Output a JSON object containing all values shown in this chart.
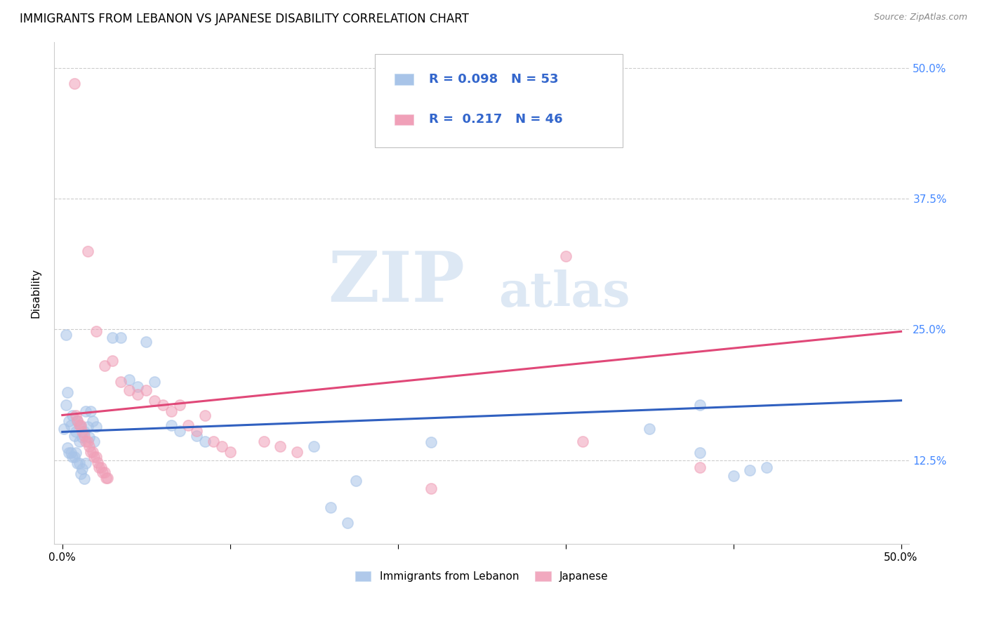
{
  "title": "IMMIGRANTS FROM LEBANON VS JAPANESE DISABILITY CORRELATION CHART",
  "source": "Source: ZipAtlas.com",
  "ylabel_label": "Disability",
  "legend_entries": [
    {
      "label": "Immigrants from Lebanon",
      "color": "#a8c4e8",
      "R": "0.098",
      "N": "53"
    },
    {
      "label": "Japanese",
      "color": "#f0a0b8",
      "R": "0.217",
      "N": "46"
    }
  ],
  "watermark_zip": "ZIP",
  "watermark_atlas": "atlas",
  "blue_scatter": [
    [
      0.001,
      0.155
    ],
    [
      0.002,
      0.178
    ],
    [
      0.003,
      0.19
    ],
    [
      0.004,
      0.162
    ],
    [
      0.005,
      0.158
    ],
    [
      0.006,
      0.168
    ],
    [
      0.007,
      0.148
    ],
    [
      0.008,
      0.152
    ],
    [
      0.009,
      0.162
    ],
    [
      0.01,
      0.143
    ],
    [
      0.011,
      0.157
    ],
    [
      0.012,
      0.147
    ],
    [
      0.013,
      0.152
    ],
    [
      0.014,
      0.172
    ],
    [
      0.015,
      0.157
    ],
    [
      0.016,
      0.147
    ],
    [
      0.017,
      0.172
    ],
    [
      0.018,
      0.162
    ],
    [
      0.019,
      0.143
    ],
    [
      0.02,
      0.157
    ],
    [
      0.003,
      0.137
    ],
    [
      0.004,
      0.132
    ],
    [
      0.005,
      0.132
    ],
    [
      0.006,
      0.128
    ],
    [
      0.007,
      0.128
    ],
    [
      0.008,
      0.132
    ],
    [
      0.009,
      0.122
    ],
    [
      0.01,
      0.122
    ],
    [
      0.011,
      0.112
    ],
    [
      0.012,
      0.117
    ],
    [
      0.013,
      0.107
    ],
    [
      0.014,
      0.122
    ],
    [
      0.002,
      0.245
    ],
    [
      0.05,
      0.238
    ],
    [
      0.035,
      0.242
    ],
    [
      0.03,
      0.242
    ],
    [
      0.04,
      0.202
    ],
    [
      0.045,
      0.195
    ],
    [
      0.055,
      0.2
    ],
    [
      0.065,
      0.158
    ],
    [
      0.07,
      0.153
    ],
    [
      0.08,
      0.148
    ],
    [
      0.085,
      0.143
    ],
    [
      0.15,
      0.138
    ],
    [
      0.35,
      0.155
    ],
    [
      0.38,
      0.178
    ],
    [
      0.38,
      0.132
    ],
    [
      0.4,
      0.11
    ],
    [
      0.42,
      0.118
    ],
    [
      0.22,
      0.142
    ],
    [
      0.16,
      0.08
    ],
    [
      0.17,
      0.065
    ],
    [
      0.175,
      0.105
    ],
    [
      0.41,
      0.115
    ]
  ],
  "pink_scatter": [
    [
      0.007,
      0.485
    ],
    [
      0.015,
      0.325
    ],
    [
      0.02,
      0.248
    ],
    [
      0.025,
      0.215
    ],
    [
      0.03,
      0.22
    ],
    [
      0.035,
      0.2
    ],
    [
      0.04,
      0.192
    ],
    [
      0.045,
      0.188
    ],
    [
      0.05,
      0.192
    ],
    [
      0.055,
      0.182
    ],
    [
      0.06,
      0.178
    ],
    [
      0.065,
      0.172
    ],
    [
      0.008,
      0.168
    ],
    [
      0.009,
      0.163
    ],
    [
      0.01,
      0.158
    ],
    [
      0.011,
      0.158
    ],
    [
      0.012,
      0.152
    ],
    [
      0.013,
      0.148
    ],
    [
      0.014,
      0.143
    ],
    [
      0.015,
      0.143
    ],
    [
      0.016,
      0.138
    ],
    [
      0.017,
      0.133
    ],
    [
      0.018,
      0.133
    ],
    [
      0.019,
      0.128
    ],
    [
      0.02,
      0.128
    ],
    [
      0.021,
      0.123
    ],
    [
      0.022,
      0.118
    ],
    [
      0.023,
      0.118
    ],
    [
      0.024,
      0.113
    ],
    [
      0.025,
      0.113
    ],
    [
      0.026,
      0.108
    ],
    [
      0.027,
      0.108
    ],
    [
      0.07,
      0.178
    ],
    [
      0.075,
      0.158
    ],
    [
      0.08,
      0.153
    ],
    [
      0.085,
      0.168
    ],
    [
      0.09,
      0.143
    ],
    [
      0.095,
      0.138
    ],
    [
      0.1,
      0.133
    ],
    [
      0.12,
      0.143
    ],
    [
      0.13,
      0.138
    ],
    [
      0.14,
      0.133
    ],
    [
      0.3,
      0.32
    ],
    [
      0.31,
      0.143
    ],
    [
      0.22,
      0.098
    ],
    [
      0.38,
      0.118
    ]
  ],
  "blue_line": {
    "x": [
      0.0,
      0.5
    ],
    "y": [
      0.152,
      0.182
    ]
  },
  "pink_line": {
    "x": [
      0.0,
      0.5
    ],
    "y": [
      0.168,
      0.248
    ]
  },
  "xlim": [
    -0.005,
    0.505
  ],
  "ylim": [
    0.045,
    0.525
  ],
  "yticks": [
    0.125,
    0.25,
    0.375,
    0.5
  ],
  "xticks": [
    0.0,
    0.1,
    0.2,
    0.3,
    0.4,
    0.5
  ],
  "xtick_labels": [
    "0.0%",
    "",
    "",
    "",
    "",
    "50.0%"
  ],
  "ytick_labels_right": [
    "12.5%",
    "25.0%",
    "37.5%",
    "50.0%"
  ],
  "blue_color": "#a8c4e8",
  "pink_color": "#f0a0b8",
  "blue_line_color": "#3060c0",
  "pink_line_color": "#e04878",
  "legend_text_color": "#3366cc",
  "background_color": "#ffffff",
  "title_fontsize": 12,
  "scatter_size": 120,
  "scatter_alpha": 0.55,
  "scatter_linewidth": 1.2
}
